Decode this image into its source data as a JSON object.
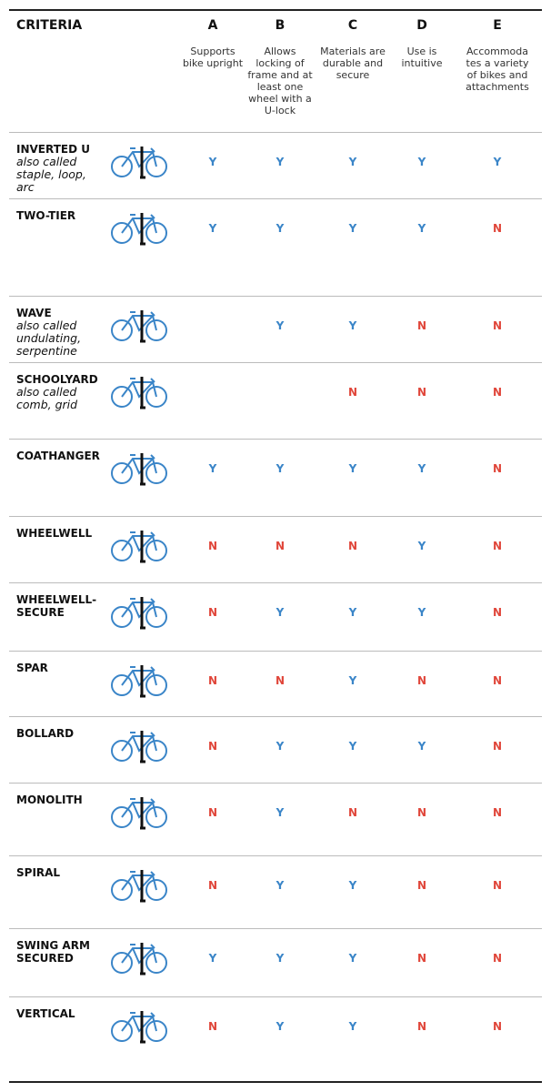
{
  "header": {
    "criteria": "CRITERIA",
    "columns": [
      {
        "letter": "A",
        "description": "Supports bike upright"
      },
      {
        "letter": "B",
        "description": "Allows locking of frame and at least one wheel with a U-lock"
      },
      {
        "letter": "C",
        "description": "Materials are durable and secure"
      },
      {
        "letter": "D",
        "description": "Use is intuitive"
      },
      {
        "letter": "E",
        "description": "Accommodates a variety of bikes and attachments"
      }
    ]
  },
  "table": {
    "rows": [
      {
        "name": [
          "INVERTED U"
        ],
        "aka": "also called staple, loop, arc",
        "cells": [
          "Y",
          "Y",
          "Y",
          "Y",
          "Y"
        ]
      },
      {
        "name": [
          "TWO-TIER"
        ],
        "cells": [
          "Y",
          "Y",
          "Y",
          "Y",
          "N"
        ]
      },
      {
        "name": [
          "WAVE"
        ],
        "aka": "also called undulating, serpentine",
        "cells": [
          null,
          "Y",
          "Y",
          "N",
          "N"
        ]
      },
      {
        "name": [
          "SCHOOLYARD"
        ],
        "aka": "also called comb, grid",
        "cells": [
          null,
          null,
          "N",
          "N",
          "N"
        ]
      },
      {
        "name": [
          "COATHANGER"
        ],
        "cells": [
          "Y",
          "Y",
          "Y",
          "Y",
          "N"
        ]
      },
      {
        "name": [
          "WHEELWELL"
        ],
        "cells": [
          "N",
          "N",
          "N",
          "Y",
          "N"
        ]
      },
      {
        "name": [
          "WHEELWELL-",
          "SECURE"
        ],
        "cells": [
          "N",
          "Y",
          "Y",
          "Y",
          "N"
        ]
      },
      {
        "name": [
          "SPAR"
        ],
        "cells": [
          "N",
          "N",
          "Y",
          "N",
          "N"
        ]
      },
      {
        "name": [
          "BOLLARD"
        ],
        "cells": [
          "N",
          "Y",
          "Y",
          "Y",
          "N"
        ]
      },
      {
        "name": [
          "MONOLITH"
        ],
        "cells": [
          "N",
          "Y",
          "N",
          "N",
          "N"
        ]
      },
      {
        "name": [
          "SPIRAL"
        ],
        "cells": [
          "N",
          "Y",
          "Y",
          "N",
          "N"
        ]
      },
      {
        "name": [
          "SWING ARM",
          "SECURED"
        ],
        "cells": [
          "Y",
          "Y",
          "Y",
          "N",
          "N"
        ]
      },
      {
        "name": [
          "VERTICAL"
        ],
        "cells": [
          "N",
          "Y",
          "Y",
          "N",
          "N"
        ]
      }
    ]
  }
}
